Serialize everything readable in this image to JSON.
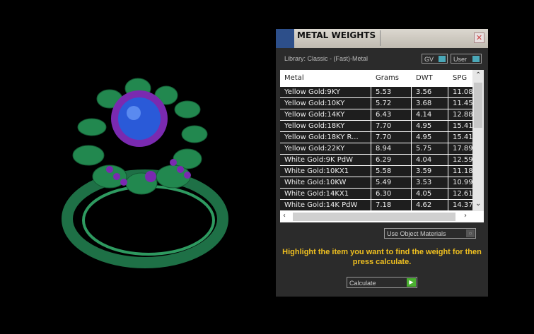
{
  "panel": {
    "title": "METAL WEIGHTS",
    "library": "Library: Classic - (Fast)-Metal",
    "gv_label": "GV",
    "user_label": "User",
    "use_object_materials": "Use Object Materials",
    "hint": "Highlight the item you want to find the weight for then press calculate.",
    "calculate": "Calculate",
    "close": "✕"
  },
  "table": {
    "headers": [
      "Metal",
      "Grams",
      "DWT",
      "SPG"
    ],
    "rows": [
      [
        "Yellow Gold:9KY",
        "5.53",
        "3.56",
        "11.08"
      ],
      [
        "Yellow Gold:10KY",
        "5.72",
        "3.68",
        "11.45"
      ],
      [
        "Yellow Gold:14KY",
        "6.43",
        "4.14",
        "12.88"
      ],
      [
        "Yellow Gold:18KY",
        "7.70",
        "4.95",
        "15.41"
      ],
      [
        "Yellow Gold:18KY R...",
        "7.70",
        "4.95",
        "15.41"
      ],
      [
        "Yellow Gold:22KY",
        "8.94",
        "5.75",
        "17.89"
      ],
      [
        "White Gold:9K PdW",
        "6.29",
        "4.04",
        "12.59"
      ],
      [
        "White Gold:10KX1",
        "5.58",
        "3.59",
        "11.18"
      ],
      [
        "White Gold:10KW",
        "5.49",
        "3.53",
        "10.99"
      ],
      [
        "White Gold:14KX1",
        "6.30",
        "4.05",
        "12.61"
      ],
      [
        "White Gold:14K PdW",
        "7.18",
        "4.62",
        "14.37"
      ]
    ]
  },
  "colors": {
    "ring_metal": "#1f7a4a",
    "gems_accent": "#8a2ab8",
    "center_stone": "#2a5ad8",
    "hint_text": "#f0c020"
  }
}
